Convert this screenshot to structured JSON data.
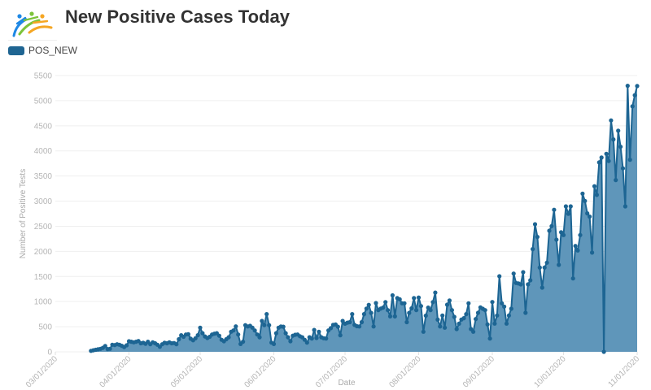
{
  "header": {
    "title": "New Positive Cases Today",
    "logo_icon": "people-arc-logo-icon"
  },
  "legend": {
    "items": [
      {
        "label": "POS_NEW",
        "color": "#1f6592"
      }
    ]
  },
  "chart_data": {
    "type": "area",
    "title": "New Positive Cases Today",
    "xlabel": "Date",
    "ylabel": "Number of Positive Tests",
    "ylim": [
      0,
      5500
    ],
    "xlim": [
      "03/01/2020",
      "11/01/2020"
    ],
    "grid": true,
    "legend_position": "top-left",
    "y_ticks": [
      0,
      500,
      1000,
      1500,
      2000,
      2500,
      3000,
      3500,
      4000,
      4500,
      5000,
      5500
    ],
    "x_ticks": [
      "03/01/2020",
      "04/01/2020",
      "05/01/2020",
      "06/01/2020",
      "07/01/2020",
      "08/01/2020",
      "09/01/2020",
      "10/01/2020",
      "11/01/2020"
    ],
    "colors": {
      "line": "#1d6593",
      "fill": "#5f96ba",
      "grid": "#efefef"
    },
    "x": [
      "03/16/2020",
      "03/17/2020",
      "03/18/2020",
      "03/19/2020",
      "03/20/2020",
      "03/21/2020",
      "03/22/2020",
      "03/23/2020",
      "03/24/2020",
      "03/25/2020",
      "03/26/2020",
      "03/27/2020",
      "03/28/2020",
      "03/29/2020",
      "03/30/2020",
      "03/31/2020",
      "04/01/2020",
      "04/02/2020",
      "04/03/2020",
      "04/04/2020",
      "04/05/2020",
      "04/06/2020",
      "04/07/2020",
      "04/08/2020",
      "04/09/2020",
      "04/10/2020",
      "04/11/2020",
      "04/12/2020",
      "04/13/2020",
      "04/14/2020",
      "04/15/2020",
      "04/16/2020",
      "04/17/2020",
      "04/18/2020",
      "04/19/2020",
      "04/20/2020",
      "04/21/2020",
      "04/22/2020",
      "04/23/2020",
      "04/24/2020",
      "04/25/2020",
      "04/26/2020",
      "04/27/2020",
      "04/28/2020",
      "04/29/2020",
      "04/30/2020",
      "05/01/2020",
      "05/02/2020",
      "05/03/2020",
      "05/04/2020",
      "05/05/2020",
      "05/06/2020",
      "05/07/2020",
      "05/08/2020",
      "05/09/2020",
      "05/10/2020",
      "05/11/2020",
      "05/12/2020",
      "05/13/2020",
      "05/14/2020",
      "05/15/2020",
      "05/16/2020",
      "05/17/2020",
      "05/18/2020",
      "05/19/2020",
      "05/20/2020",
      "05/21/2020",
      "05/22/2020",
      "05/23/2020",
      "05/24/2020",
      "05/25/2020",
      "05/26/2020",
      "05/27/2020",
      "05/28/2020",
      "05/29/2020",
      "05/30/2020",
      "05/31/2020",
      "06/01/2020",
      "06/02/2020",
      "06/03/2020",
      "06/04/2020",
      "06/05/2020",
      "06/06/2020",
      "06/07/2020",
      "06/08/2020",
      "06/09/2020",
      "06/10/2020",
      "06/11/2020",
      "06/12/2020",
      "06/13/2020",
      "06/14/2020",
      "06/15/2020",
      "06/16/2020",
      "06/17/2020",
      "06/18/2020",
      "06/19/2020",
      "06/20/2020",
      "06/21/2020",
      "06/22/2020",
      "06/23/2020",
      "06/24/2020",
      "06/25/2020",
      "06/26/2020",
      "06/27/2020",
      "06/28/2020",
      "06/29/2020",
      "06/30/2020",
      "07/01/2020",
      "07/02/2020",
      "07/03/2020",
      "07/04/2020",
      "07/05/2020",
      "07/06/2020",
      "07/07/2020",
      "07/08/2020",
      "07/09/2020",
      "07/10/2020",
      "07/11/2020",
      "07/12/2020",
      "07/13/2020",
      "07/14/2020",
      "07/15/2020",
      "07/16/2020",
      "07/17/2020",
      "07/18/2020",
      "07/19/2020",
      "07/20/2020",
      "07/21/2020",
      "07/22/2020",
      "07/23/2020",
      "07/24/2020",
      "07/25/2020",
      "07/26/2020",
      "07/27/2020",
      "07/28/2020",
      "07/29/2020",
      "07/30/2020",
      "07/31/2020",
      "08/01/2020",
      "08/02/2020",
      "08/03/2020",
      "08/04/2020",
      "08/05/2020",
      "08/06/2020",
      "08/07/2020",
      "08/08/2020",
      "08/09/2020",
      "08/10/2020",
      "08/11/2020",
      "08/12/2020",
      "08/13/2020",
      "08/14/2020",
      "08/15/2020",
      "08/16/2020",
      "08/17/2020",
      "08/18/2020",
      "08/19/2020",
      "08/20/2020",
      "08/21/2020",
      "08/22/2020",
      "08/23/2020",
      "08/24/2020",
      "08/25/2020",
      "08/26/2020",
      "08/27/2020",
      "08/28/2020",
      "08/29/2020",
      "08/30/2020",
      "08/31/2020",
      "09/01/2020",
      "09/02/2020",
      "09/03/2020",
      "09/04/2020",
      "09/05/2020",
      "09/06/2020",
      "09/07/2020",
      "09/08/2020",
      "09/09/2020",
      "09/10/2020",
      "09/11/2020",
      "09/12/2020",
      "09/13/2020",
      "09/14/2020",
      "09/15/2020",
      "09/16/2020",
      "09/17/2020",
      "09/18/2020",
      "09/19/2020",
      "09/20/2020",
      "09/21/2020",
      "09/22/2020",
      "09/23/2020",
      "09/24/2020",
      "09/25/2020",
      "09/26/2020",
      "09/27/2020",
      "09/28/2020",
      "09/29/2020",
      "09/30/2020",
      "10/01/2020",
      "10/02/2020",
      "10/03/2020",
      "10/04/2020",
      "10/05/2020",
      "10/06/2020",
      "10/07/2020",
      "10/08/2020",
      "10/09/2020",
      "10/10/2020",
      "10/11/2020",
      "10/12/2020",
      "10/13/2020",
      "10/14/2020",
      "10/15/2020",
      "10/16/2020",
      "10/17/2020",
      "10/18/2020",
      "10/19/2020",
      "10/20/2020",
      "10/21/2020",
      "10/22/2020",
      "10/23/2020",
      "10/24/2020",
      "10/25/2020",
      "10/26/2020",
      "10/27/2020",
      "10/28/2020",
      "10/29/2020",
      "10/30/2020",
      "10/31/2020",
      "11/01/2020"
    ],
    "series": [
      {
        "name": "POS_NEW",
        "values": [
          20,
          30,
          40,
          50,
          60,
          80,
          115,
          55,
          60,
          140,
          135,
          150,
          140,
          120,
          95,
          130,
          210,
          200,
          190,
          200,
          215,
          170,
          180,
          160,
          200,
          150,
          190,
          170,
          140,
          100,
          150,
          180,
          170,
          190,
          170,
          175,
          150,
          250,
          330,
          300,
          345,
          350,
          260,
          230,
          270,
          330,
          480,
          370,
          305,
          275,
          300,
          345,
          360,
          370,
          320,
          240,
          210,
          250,
          290,
          400,
          425,
          506,
          345,
          156,
          200,
          530,
          505,
          518,
          480,
          425,
          345,
          290,
          615,
          530,
          750,
          530,
          183,
          155,
          370,
          480,
          505,
          500,
          370,
          290,
          210,
          320,
          340,
          345,
          310,
          290,
          240,
          183,
          290,
          265,
          435,
          275,
          400,
          290,
          270,
          265,
          425,
          470,
          535,
          545,
          500,
          330,
          615,
          560,
          580,
          590,
          750,
          535,
          510,
          505,
          590,
          750,
          860,
          935,
          775,
          505,
          970,
          830,
          860,
          880,
          990,
          830,
          705,
          1125,
          705,
          1070,
          1045,
          965,
          965,
          590,
          775,
          865,
          1070,
          830,
          1080,
          910,
          400,
          720,
          880,
          830,
          990,
          1180,
          640,
          505,
          723,
          480,
          938,
          1020,
          830,
          696,
          453,
          560,
          642,
          669,
          750,
          965,
          453,
          400,
          652,
          777,
          885,
          857,
          830,
          545,
          264,
          992,
          561,
          723,
          1505,
          965,
          900,
          561,
          723,
          857,
          1558,
          1370,
          1360,
          1343,
          1585,
          777,
          1343,
          1424,
          2044,
          2540,
          2287,
          1678,
          1278,
          1678,
          1775,
          2411,
          2503,
          2827,
          2233,
          1731,
          2379,
          2325,
          2896,
          2746,
          2896,
          1461,
          2108,
          2017,
          2325,
          3150,
          3004,
          2756,
          2691,
          1975,
          3296,
          3123,
          3770,
          3867,
          0,
          3943,
          3798,
          4607,
          4228,
          3419,
          4401,
          4083,
          3652,
          2896,
          5296,
          3824,
          4887,
          5108,
          5291
        ]
      }
    ]
  }
}
